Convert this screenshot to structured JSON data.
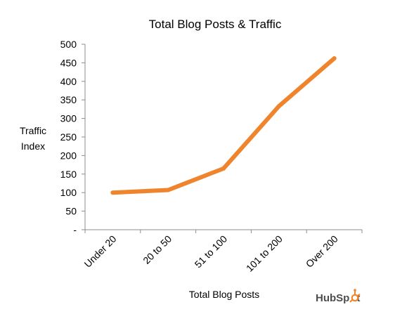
{
  "chart_data": {
    "type": "line",
    "title": "Total Blog Posts & Traffic",
    "xlabel": "Total Blog Posts",
    "ylabel_lines": [
      "Traffic",
      "Index"
    ],
    "categories": [
      "Under 20",
      "20 to 50",
      "51 to 100",
      "101 to 200",
      "Over 200"
    ],
    "series": [
      {
        "values": [
          100,
          107,
          165,
          333,
          462
        ]
      }
    ],
    "ylim": [
      0,
      500
    ],
    "yticks": [
      0,
      50,
      100,
      150,
      200,
      250,
      300,
      350,
      400,
      450,
      500
    ],
    "ytick_labels": [
      "-",
      "50",
      "100",
      "150",
      "200",
      "250",
      "300",
      "350",
      "400",
      "450",
      "500"
    ],
    "grid": false,
    "line_color": "#F0842C"
  },
  "brand": {
    "text_pre": "HubSp",
    "text_post": "t",
    "color": "#4D4D4D",
    "accent": "#F0842C"
  }
}
